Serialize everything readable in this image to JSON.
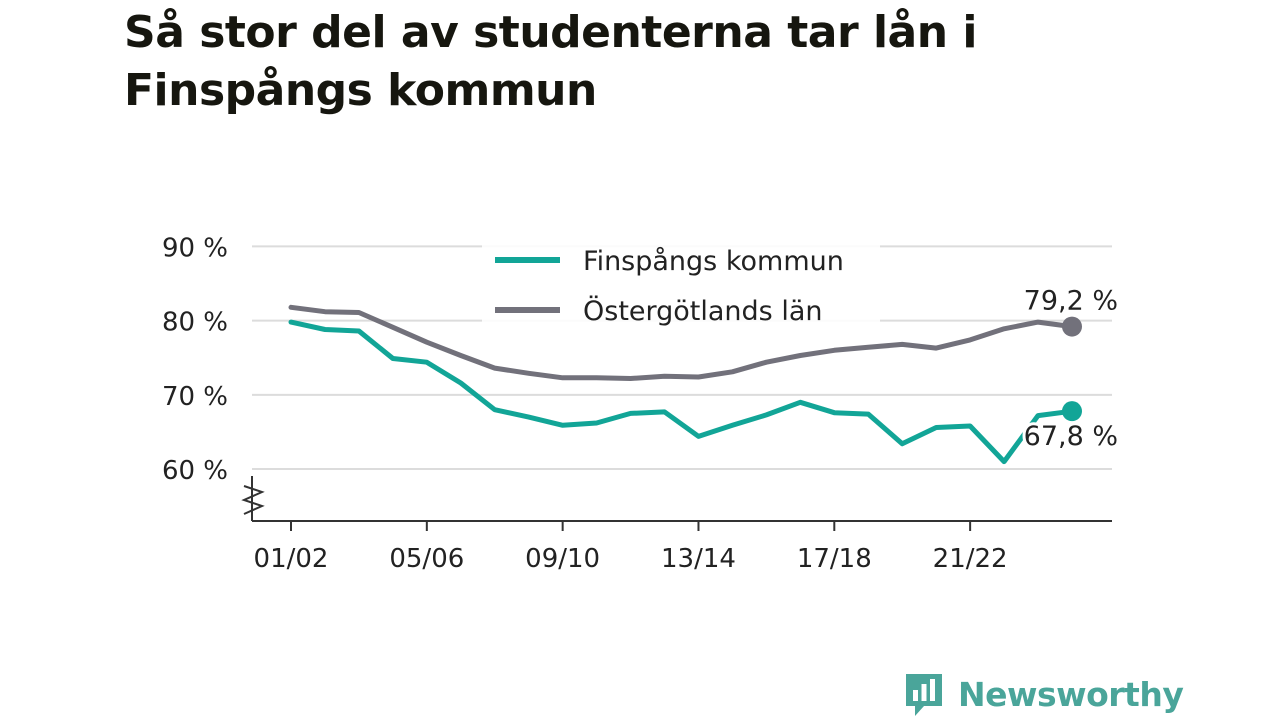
{
  "title": "Så stor del av studenterna tar lån i Finspångs kommun",
  "brand": {
    "name": "Newsworthy",
    "logo_icon": "bar-chart-speech-bubble-icon"
  },
  "colors": {
    "finspang": "#12a597",
    "ostergotland": "#72717b",
    "grid": "#dcdcdc",
    "axis": "#333333",
    "text": "#222222",
    "brand": "#4aa59a"
  },
  "chart_data": {
    "type": "line",
    "y_tick_labels": [
      "90 %",
      "80 %",
      "70 %",
      "60 %"
    ],
    "y_ticks": [
      90,
      80,
      70,
      60
    ],
    "ylim": [
      53,
      91
    ],
    "x_tick_labels": [
      "01/02",
      "05/06",
      "09/10",
      "13/14",
      "17/18",
      "21/22"
    ],
    "x_tick_positions": [
      0,
      4,
      8,
      12,
      16,
      20
    ],
    "legend_position": "top-center",
    "series": [
      {
        "key": "finspang",
        "name": "Finspångs kommun",
        "color": "#12a597",
        "end_label": "67,8 %",
        "values": [
          79.8,
          78.8,
          78.6,
          74.9,
          74.4,
          71.6,
          68.0,
          67.0,
          65.9,
          66.2,
          67.5,
          67.7,
          64.4,
          65.9,
          67.3,
          69.0,
          67.6,
          67.4,
          63.4,
          65.6,
          65.8,
          61.0,
          67.2,
          67.8
        ]
      },
      {
        "key": "ostergotland",
        "name": "Östergötlands län",
        "color": "#72717b",
        "end_label": "79,2 %",
        "values": [
          81.8,
          81.2,
          81.1,
          79.1,
          77.1,
          75.3,
          73.6,
          72.9,
          72.3,
          72.3,
          72.2,
          72.5,
          72.4,
          73.1,
          74.4,
          75.3,
          76.0,
          76.4,
          76.8,
          76.3,
          77.4,
          78.9,
          79.8,
          79.2
        ]
      }
    ]
  }
}
